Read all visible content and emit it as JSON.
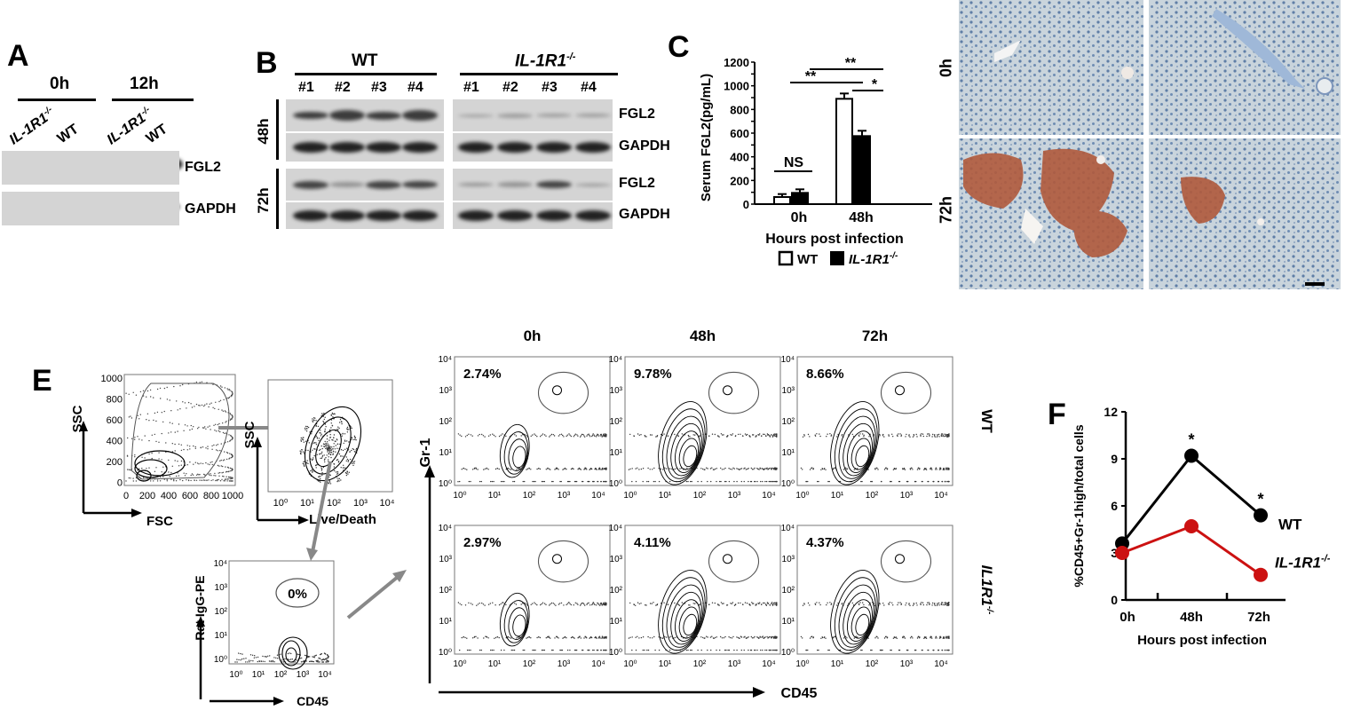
{
  "panel_labels": {
    "a": "A",
    "b": "B",
    "c": "C",
    "e": "E",
    "f": "F"
  },
  "panel_a": {
    "groups": [
      "0h",
      "12h"
    ],
    "lanes": [
      "IL-1R1",
      "WT",
      "IL-1R1",
      "WT"
    ],
    "lane_sup": "-/-",
    "rows": [
      "FGL2",
      "GAPDH"
    ]
  },
  "panel_b": {
    "groups": [
      "WT",
      "IL-1R1"
    ],
    "group_sup": "-/-",
    "lanes": [
      "#1",
      "#2",
      "#3",
      "#4",
      "#1",
      "#2",
      "#3",
      "#4"
    ],
    "times": [
      "48h",
      "72h"
    ],
    "rows": [
      "FGL2",
      "GAPDH",
      "FGL2",
      "GAPDH"
    ]
  },
  "panel_c": {
    "ylabel": "Serum FGL2(pg/mL)",
    "xlabel": "Hours post infection",
    "legend": {
      "wt": "WT",
      "ko": "IL-1R1",
      "ko_sup": "-/-"
    },
    "annotations": {
      "ns": "NS",
      "ss1": "**",
      "ss2": "**",
      "s": "*"
    }
  },
  "panel_d": {
    "rows": [
      "0h",
      "72h"
    ]
  },
  "panel_e": {
    "gate1": {
      "xlabel": "FSC",
      "ylabel": "SSC"
    },
    "gate2": {
      "xlabel": "Live/Death",
      "ylabel": "SSC"
    },
    "gate3": {
      "xlabel": "CD45",
      "ylabel": "Rat IgG-PE",
      "pct": "0%"
    },
    "columns": [
      "0h",
      "48h",
      "72h"
    ],
    "rows": [
      "WT",
      "IL1R1"
    ],
    "row_sup": "-/-",
    "xaxis": "CD45",
    "yaxis": "Gr-1",
    "percents": [
      [
        "2.74%",
        "9.78%",
        "8.66%"
      ],
      [
        "2.97%",
        "4.11%",
        "4.37%"
      ]
    ]
  },
  "chart_data": [
    {
      "type": "bar",
      "title": "",
      "ylabel": "Serum FGL2(pg/mL)",
      "xlabel": "Hours post infection",
      "categories": [
        "0h",
        "48h"
      ],
      "series": [
        {
          "name": "WT",
          "values": [
            60,
            890
          ],
          "errors": [
            25,
            45
          ],
          "color": "#ffffff"
        },
        {
          "name": "IL-1R1-/-",
          "values": [
            95,
            575
          ],
          "errors": [
            30,
            45
          ],
          "color": "#000000"
        }
      ],
      "ylim": [
        0,
        1200
      ],
      "yticks": [
        0,
        100,
        200,
        300,
        400,
        500,
        600,
        700,
        800,
        900,
        1000,
        1100,
        1200
      ]
    },
    {
      "type": "line",
      "title": "",
      "ylabel": "%CD45+Gr-1high/total cells",
      "xlabel": "Hours post infection",
      "categories": [
        "0h",
        "48h",
        "72h"
      ],
      "series": [
        {
          "name": "WT",
          "values": [
            3.6,
            9.2,
            5.4
          ],
          "color": "#000000"
        },
        {
          "name": "IL-1R1-/-",
          "values": [
            3.0,
            4.7,
            1.6
          ],
          "color": "#cc1111"
        }
      ],
      "ylim": [
        0,
        12
      ],
      "yticks": [
        0,
        3,
        6,
        9,
        12
      ],
      "star": "*"
    }
  ]
}
